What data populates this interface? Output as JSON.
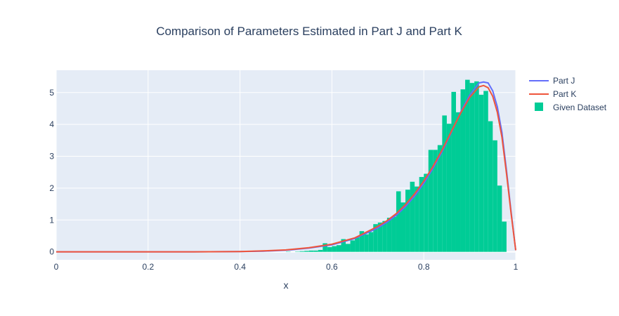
{
  "chart_data": {
    "type": "bar",
    "title": "Comparison of Parameters Estimated in Part J and Part K",
    "xlabel": "x",
    "ylabel": "",
    "xlim": [
      0,
      1
    ],
    "ylim": [
      -0.25,
      5.7
    ],
    "x_ticks": [
      0,
      0.2,
      0.4,
      0.6,
      0.8,
      1
    ],
    "x_tick_labels": [
      "0",
      "0.2",
      "0.4",
      "0.6",
      "0.8",
      "1"
    ],
    "y_ticks": [
      0,
      1,
      2,
      3,
      4,
      5
    ],
    "y_tick_labels": [
      "0",
      "1",
      "2",
      "3",
      "4",
      "5"
    ],
    "grid": true,
    "legend_position": "top-right",
    "colors": {
      "plot_bg": "#e5ecf6",
      "grid": "#ffffff",
      "part_j": "#636efa",
      "part_k": "#ef553b",
      "histogram": "#00cc96",
      "text": "#2a3f5f"
    },
    "histogram": {
      "name": "Given Dataset",
      "bin_width": 0.01,
      "bin_start": 0.5,
      "values": [
        0.01,
        0.0,
        0.01,
        0.02,
        0.03,
        0.04,
        0.04,
        0.06,
        0.27,
        0.15,
        0.18,
        0.21,
        0.4,
        0.25,
        0.36,
        0.45,
        0.65,
        0.55,
        0.62,
        0.87,
        0.92,
        0.97,
        1.07,
        1.1,
        1.9,
        1.55,
        1.95,
        2.2,
        2.05,
        2.35,
        2.45,
        3.2,
        3.2,
        3.35,
        4.28,
        4.02,
        5.02,
        4.38,
        5.1,
        5.4,
        5.3,
        5.35,
        4.93,
        5.05,
        4.1,
        3.5,
        2.08,
        0.95
      ]
    },
    "series": [
      {
        "name": "Part J",
        "x": [
          0,
          0.1,
          0.2,
          0.3,
          0.4,
          0.45,
          0.5,
          0.55,
          0.6,
          0.65,
          0.7,
          0.72,
          0.74,
          0.76,
          0.78,
          0.8,
          0.82,
          0.84,
          0.86,
          0.88,
          0.9,
          0.92,
          0.93,
          0.94,
          0.95,
          0.96,
          0.97,
          0.98,
          0.99,
          1.0
        ],
        "y": [
          0.0,
          0.0,
          0.0,
          0.0,
          0.01,
          0.02,
          0.05,
          0.12,
          0.22,
          0.42,
          0.75,
          0.93,
          1.15,
          1.42,
          1.75,
          2.15,
          2.62,
          3.15,
          3.75,
          4.38,
          4.92,
          5.3,
          5.33,
          5.3,
          5.05,
          4.55,
          3.75,
          2.55,
          1.25,
          0.05
        ]
      },
      {
        "name": "Part K",
        "x": [
          0,
          0.1,
          0.2,
          0.3,
          0.4,
          0.45,
          0.5,
          0.55,
          0.6,
          0.65,
          0.7,
          0.72,
          0.74,
          0.76,
          0.78,
          0.8,
          0.82,
          0.84,
          0.86,
          0.88,
          0.9,
          0.92,
          0.93,
          0.94,
          0.95,
          0.96,
          0.97,
          0.98,
          0.99,
          1.0
        ],
        "y": [
          0.0,
          0.0,
          0.0,
          0.0,
          0.01,
          0.03,
          0.06,
          0.13,
          0.24,
          0.44,
          0.8,
          0.98,
          1.2,
          1.48,
          1.82,
          2.22,
          2.68,
          3.2,
          3.78,
          4.35,
          4.85,
          5.18,
          5.22,
          5.15,
          4.88,
          4.38,
          3.6,
          2.45,
          1.2,
          0.05
        ]
      }
    ]
  }
}
